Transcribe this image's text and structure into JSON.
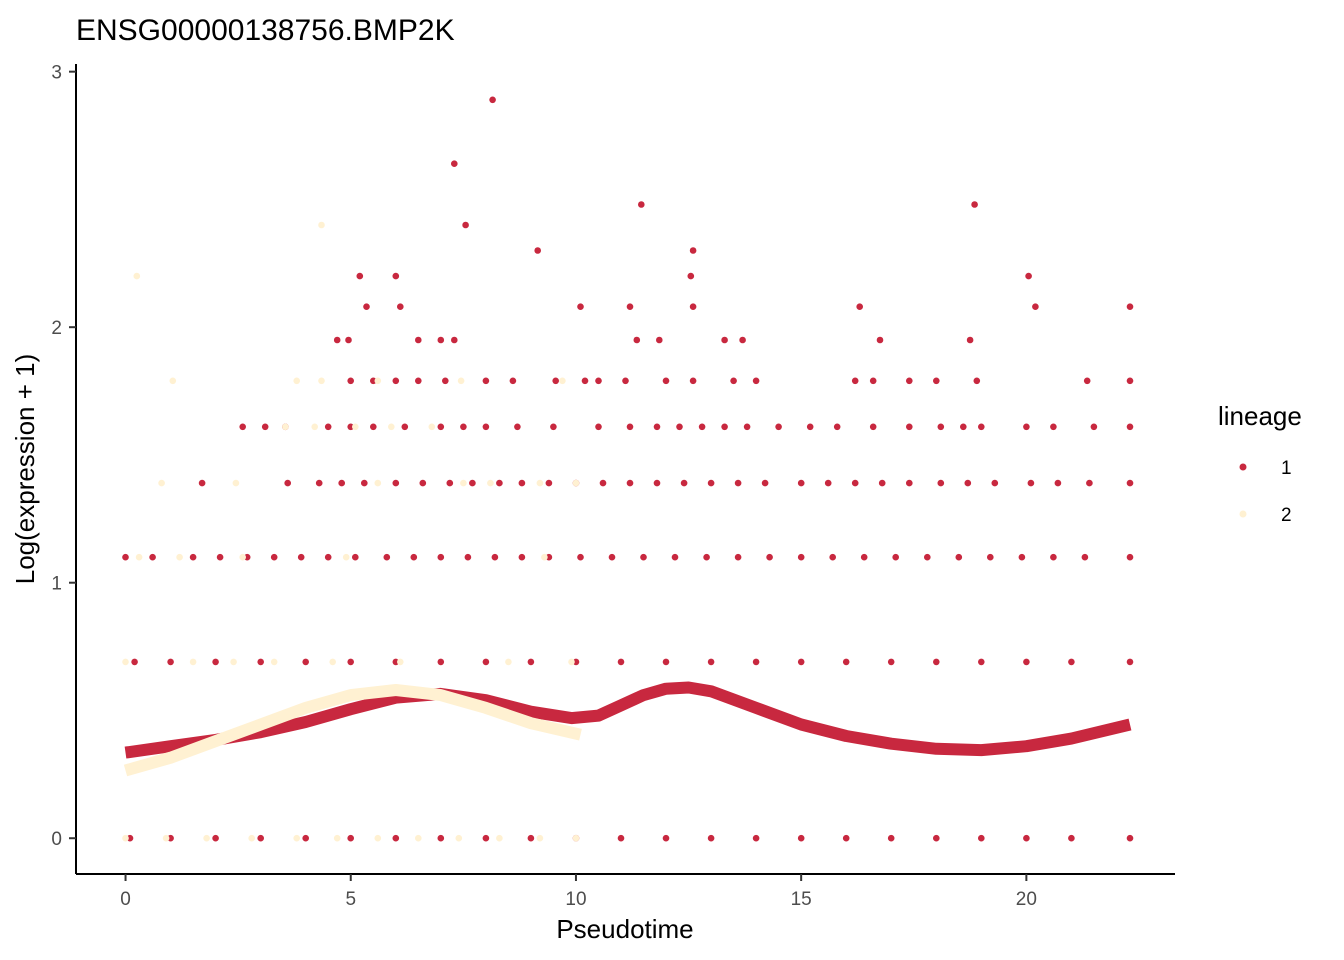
{
  "chart_data": {
    "type": "scatter",
    "title": "ENSG00000138756.BMP2K",
    "xlabel": "Pseudotime",
    "ylabel": "Log(expression + 1)",
    "xlim": [
      -1.1,
      23.3
    ],
    "ylim": [
      -0.14,
      3.03
    ],
    "x_ticks": [
      0,
      5,
      10,
      15,
      20
    ],
    "y_ticks": [
      0,
      1,
      2,
      3
    ],
    "x_tick_labels": [
      "0",
      "5",
      "10",
      "15",
      "20"
    ],
    "y_tick_labels": [
      "0",
      "1",
      "2",
      "3"
    ],
    "grid": false,
    "legend": {
      "title": "lineage",
      "position": "right",
      "entries": [
        {
          "label": "1",
          "color": "#C8283F"
        },
        {
          "label": "2",
          "color": "#FFF1D2"
        }
      ]
    },
    "series": [
      {
        "name": "1",
        "color": "#C8283F",
        "points": [
          [
            7.3,
            2.64
          ],
          [
            8.15,
            2.89
          ],
          [
            7.55,
            2.4
          ],
          [
            11.45,
            2.48
          ],
          [
            18.85,
            2.48
          ],
          [
            9.15,
            2.3
          ],
          [
            12.6,
            2.3
          ],
          [
            5.2,
            2.2
          ],
          [
            6.0,
            2.2
          ],
          [
            12.55,
            2.2
          ],
          [
            20.05,
            2.2
          ],
          [
            5.35,
            2.08
          ],
          [
            6.1,
            2.08
          ],
          [
            10.1,
            2.08
          ],
          [
            11.2,
            2.08
          ],
          [
            12.6,
            2.08
          ],
          [
            16.3,
            2.08
          ],
          [
            20.2,
            2.08
          ],
          [
            22.3,
            2.08
          ],
          [
            4.7,
            1.95
          ],
          [
            4.95,
            1.95
          ],
          [
            6.5,
            1.95
          ],
          [
            7.0,
            1.95
          ],
          [
            7.3,
            1.95
          ],
          [
            11.35,
            1.95
          ],
          [
            11.85,
            1.95
          ],
          [
            13.3,
            1.95
          ],
          [
            13.7,
            1.95
          ],
          [
            16.75,
            1.95
          ],
          [
            18.75,
            1.95
          ],
          [
            5.0,
            1.79
          ],
          [
            5.5,
            1.79
          ],
          [
            6.0,
            1.79
          ],
          [
            6.5,
            1.79
          ],
          [
            7.1,
            1.79
          ],
          [
            8.0,
            1.79
          ],
          [
            8.6,
            1.79
          ],
          [
            9.55,
            1.79
          ],
          [
            10.2,
            1.79
          ],
          [
            10.5,
            1.79
          ],
          [
            11.1,
            1.79
          ],
          [
            12.0,
            1.79
          ],
          [
            12.6,
            1.79
          ],
          [
            13.5,
            1.79
          ],
          [
            14.0,
            1.79
          ],
          [
            16.2,
            1.79
          ],
          [
            16.6,
            1.79
          ],
          [
            17.4,
            1.79
          ],
          [
            18.0,
            1.79
          ],
          [
            18.9,
            1.79
          ],
          [
            21.35,
            1.79
          ],
          [
            22.3,
            1.79
          ],
          [
            2.6,
            1.61
          ],
          [
            3.1,
            1.61
          ],
          [
            3.55,
            1.61
          ],
          [
            4.5,
            1.61
          ],
          [
            5.0,
            1.61
          ],
          [
            5.5,
            1.61
          ],
          [
            6.2,
            1.61
          ],
          [
            7.0,
            1.61
          ],
          [
            7.5,
            1.61
          ],
          [
            8.0,
            1.61
          ],
          [
            8.7,
            1.61
          ],
          [
            9.5,
            1.61
          ],
          [
            10.5,
            1.61
          ],
          [
            11.2,
            1.61
          ],
          [
            11.8,
            1.61
          ],
          [
            12.3,
            1.61
          ],
          [
            12.8,
            1.61
          ],
          [
            13.3,
            1.61
          ],
          [
            13.8,
            1.61
          ],
          [
            14.5,
            1.61
          ],
          [
            15.2,
            1.61
          ],
          [
            15.8,
            1.61
          ],
          [
            16.6,
            1.61
          ],
          [
            17.4,
            1.61
          ],
          [
            18.1,
            1.61
          ],
          [
            18.6,
            1.61
          ],
          [
            19.0,
            1.61
          ],
          [
            20.0,
            1.61
          ],
          [
            20.6,
            1.61
          ],
          [
            21.5,
            1.61
          ],
          [
            22.3,
            1.61
          ],
          [
            1.7,
            1.39
          ],
          [
            3.6,
            1.39
          ],
          [
            4.3,
            1.39
          ],
          [
            4.8,
            1.39
          ],
          [
            5.3,
            1.39
          ],
          [
            6.0,
            1.39
          ],
          [
            6.6,
            1.39
          ],
          [
            7.2,
            1.39
          ],
          [
            7.7,
            1.39
          ],
          [
            8.3,
            1.39
          ],
          [
            8.8,
            1.39
          ],
          [
            9.4,
            1.39
          ],
          [
            10.0,
            1.39
          ],
          [
            10.6,
            1.39
          ],
          [
            11.2,
            1.39
          ],
          [
            11.8,
            1.39
          ],
          [
            12.4,
            1.39
          ],
          [
            13.0,
            1.39
          ],
          [
            13.6,
            1.39
          ],
          [
            14.2,
            1.39
          ],
          [
            15.0,
            1.39
          ],
          [
            15.6,
            1.39
          ],
          [
            16.2,
            1.39
          ],
          [
            16.8,
            1.39
          ],
          [
            17.4,
            1.39
          ],
          [
            18.1,
            1.39
          ],
          [
            18.7,
            1.39
          ],
          [
            19.3,
            1.39
          ],
          [
            20.1,
            1.39
          ],
          [
            20.7,
            1.39
          ],
          [
            21.4,
            1.39
          ],
          [
            22.3,
            1.39
          ],
          [
            0.0,
            1.1
          ],
          [
            0.6,
            1.1
          ],
          [
            1.5,
            1.1
          ],
          [
            2.1,
            1.1
          ],
          [
            2.7,
            1.1
          ],
          [
            3.3,
            1.1
          ],
          [
            3.9,
            1.1
          ],
          [
            4.5,
            1.1
          ],
          [
            5.1,
            1.1
          ],
          [
            5.8,
            1.1
          ],
          [
            6.4,
            1.1
          ],
          [
            7.0,
            1.1
          ],
          [
            7.6,
            1.1
          ],
          [
            8.2,
            1.1
          ],
          [
            8.8,
            1.1
          ],
          [
            9.4,
            1.1
          ],
          [
            10.1,
            1.1
          ],
          [
            10.8,
            1.1
          ],
          [
            11.5,
            1.1
          ],
          [
            12.2,
            1.1
          ],
          [
            12.9,
            1.1
          ],
          [
            13.6,
            1.1
          ],
          [
            14.3,
            1.1
          ],
          [
            15.0,
            1.1
          ],
          [
            15.7,
            1.1
          ],
          [
            16.4,
            1.1
          ],
          [
            17.1,
            1.1
          ],
          [
            17.8,
            1.1
          ],
          [
            18.5,
            1.1
          ],
          [
            19.2,
            1.1
          ],
          [
            19.9,
            1.1
          ],
          [
            20.6,
            1.1
          ],
          [
            21.3,
            1.1
          ],
          [
            22.3,
            1.1
          ],
          [
            0.2,
            0.69
          ],
          [
            1.0,
            0.69
          ],
          [
            2.0,
            0.69
          ],
          [
            3.0,
            0.69
          ],
          [
            4.0,
            0.69
          ],
          [
            5.0,
            0.69
          ],
          [
            6.0,
            0.69
          ],
          [
            7.0,
            0.69
          ],
          [
            8.0,
            0.69
          ],
          [
            9.0,
            0.69
          ],
          [
            10.0,
            0.69
          ],
          [
            11.0,
            0.69
          ],
          [
            12.0,
            0.69
          ],
          [
            13.0,
            0.69
          ],
          [
            14.0,
            0.69
          ],
          [
            15.0,
            0.69
          ],
          [
            16.0,
            0.69
          ],
          [
            17.0,
            0.69
          ],
          [
            18.0,
            0.69
          ],
          [
            19.0,
            0.69
          ],
          [
            20.0,
            0.69
          ],
          [
            21.0,
            0.69
          ],
          [
            22.3,
            0.69
          ],
          [
            0.1,
            0.0
          ],
          [
            1.0,
            0.0
          ],
          [
            2.0,
            0.0
          ],
          [
            3.0,
            0.0
          ],
          [
            4.0,
            0.0
          ],
          [
            5.0,
            0.0
          ],
          [
            6.0,
            0.0
          ],
          [
            7.0,
            0.0
          ],
          [
            8.0,
            0.0
          ],
          [
            9.0,
            0.0
          ],
          [
            10.0,
            0.0
          ],
          [
            11.0,
            0.0
          ],
          [
            12.0,
            0.0
          ],
          [
            13.0,
            0.0
          ],
          [
            14.0,
            0.0
          ],
          [
            15.0,
            0.0
          ],
          [
            16.0,
            0.0
          ],
          [
            17.0,
            0.0
          ],
          [
            18.0,
            0.0
          ],
          [
            19.0,
            0.0
          ],
          [
            20.0,
            0.0
          ],
          [
            21.0,
            0.0
          ],
          [
            22.3,
            0.0
          ]
        ],
        "curve": [
          [
            0.0,
            0.335
          ],
          [
            1.0,
            0.36
          ],
          [
            2.0,
            0.385
          ],
          [
            3.0,
            0.415
          ],
          [
            4.0,
            0.455
          ],
          [
            5.0,
            0.505
          ],
          [
            6.0,
            0.55
          ],
          [
            7.0,
            0.565
          ],
          [
            8.0,
            0.54
          ],
          [
            9.0,
            0.495
          ],
          [
            9.9,
            0.47
          ],
          [
            10.5,
            0.48
          ],
          [
            11.0,
            0.52
          ],
          [
            11.5,
            0.56
          ],
          [
            12.0,
            0.585
          ],
          [
            12.5,
            0.59
          ],
          [
            13.0,
            0.575
          ],
          [
            14.0,
            0.51
          ],
          [
            15.0,
            0.445
          ],
          [
            16.0,
            0.4
          ],
          [
            17.0,
            0.37
          ],
          [
            18.0,
            0.35
          ],
          [
            19.0,
            0.345
          ],
          [
            20.0,
            0.36
          ],
          [
            21.0,
            0.39
          ],
          [
            22.3,
            0.445
          ]
        ]
      },
      {
        "name": "2",
        "color": "#FFF1D2",
        "points": [
          [
            0.25,
            2.2
          ],
          [
            4.35,
            2.4
          ],
          [
            1.05,
            1.79
          ],
          [
            4.35,
            1.79
          ],
          [
            3.8,
            1.79
          ],
          [
            5.6,
            1.79
          ],
          [
            7.45,
            1.79
          ],
          [
            9.7,
            1.79
          ],
          [
            3.55,
            1.61
          ],
          [
            4.2,
            1.61
          ],
          [
            5.1,
            1.61
          ],
          [
            5.9,
            1.61
          ],
          [
            6.8,
            1.61
          ],
          [
            0.8,
            1.39
          ],
          [
            2.45,
            1.39
          ],
          [
            5.6,
            1.39
          ],
          [
            7.5,
            1.39
          ],
          [
            8.1,
            1.39
          ],
          [
            9.2,
            1.39
          ],
          [
            10.0,
            1.39
          ],
          [
            0.3,
            1.1
          ],
          [
            1.2,
            1.1
          ],
          [
            2.6,
            1.1
          ],
          [
            4.9,
            1.1
          ],
          [
            9.3,
            1.1
          ],
          [
            0.0,
            0.69
          ],
          [
            1.5,
            0.69
          ],
          [
            2.4,
            0.69
          ],
          [
            3.3,
            0.69
          ],
          [
            4.6,
            0.69
          ],
          [
            6.1,
            0.69
          ],
          [
            8.5,
            0.69
          ],
          [
            9.9,
            0.69
          ],
          [
            0.0,
            0.0
          ],
          [
            0.9,
            0.0
          ],
          [
            1.8,
            0.0
          ],
          [
            2.8,
            0.0
          ],
          [
            3.8,
            0.0
          ],
          [
            4.7,
            0.0
          ],
          [
            5.6,
            0.0
          ],
          [
            6.5,
            0.0
          ],
          [
            7.4,
            0.0
          ],
          [
            8.3,
            0.0
          ],
          [
            9.2,
            0.0
          ],
          [
            10.0,
            0.0
          ]
        ],
        "curve": [
          [
            0.0,
            0.265
          ],
          [
            1.0,
            0.315
          ],
          [
            2.0,
            0.38
          ],
          [
            3.0,
            0.445
          ],
          [
            4.0,
            0.51
          ],
          [
            5.0,
            0.56
          ],
          [
            6.0,
            0.58
          ],
          [
            7.0,
            0.56
          ],
          [
            8.0,
            0.51
          ],
          [
            9.0,
            0.45
          ],
          [
            10.1,
            0.405
          ]
        ]
      }
    ]
  }
}
